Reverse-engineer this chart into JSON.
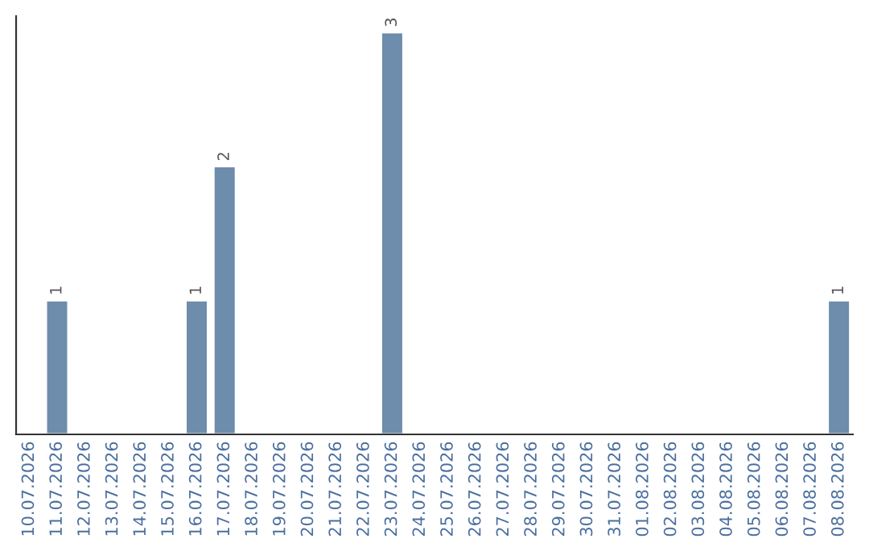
{
  "chart_data": {
    "type": "bar",
    "categories": [
      "10.07.2026",
      "11.07.2026",
      "12.07.2026",
      "13.07.2026",
      "14.07.2026",
      "15.07.2026",
      "16.07.2026",
      "17.07.2026",
      "18.07.2026",
      "19.07.2026",
      "20.07.2026",
      "21.07.2026",
      "22.07.2026",
      "23.07.2026",
      "24.07.2026",
      "25.07.2026",
      "26.07.2026",
      "27.07.2026",
      "28.07.2026",
      "29.07.2026",
      "30.07.2026",
      "31.07.2026",
      "01.08.2026",
      "02.08.2026",
      "03.08.2026",
      "04.08.2026",
      "05.08.2026",
      "06.08.2026",
      "07.08.2026",
      "08.08.2026"
    ],
    "values": [
      null,
      1,
      null,
      null,
      null,
      null,
      1,
      2,
      null,
      null,
      null,
      null,
      null,
      3,
      null,
      null,
      null,
      null,
      null,
      null,
      null,
      null,
      null,
      null,
      null,
      null,
      null,
      null,
      null,
      1
    ],
    "value_labels": [
      null,
      "1",
      null,
      null,
      null,
      null,
      "1",
      "2",
      null,
      null,
      null,
      null,
      null,
      "3",
      null,
      null,
      null,
      null,
      null,
      null,
      null,
      null,
      null,
      null,
      null,
      null,
      null,
      null,
      null,
      "1"
    ],
    "color": "#6e8cab",
    "ylim": [
      0,
      3.12
    ],
    "grid": false,
    "legend": false
  }
}
